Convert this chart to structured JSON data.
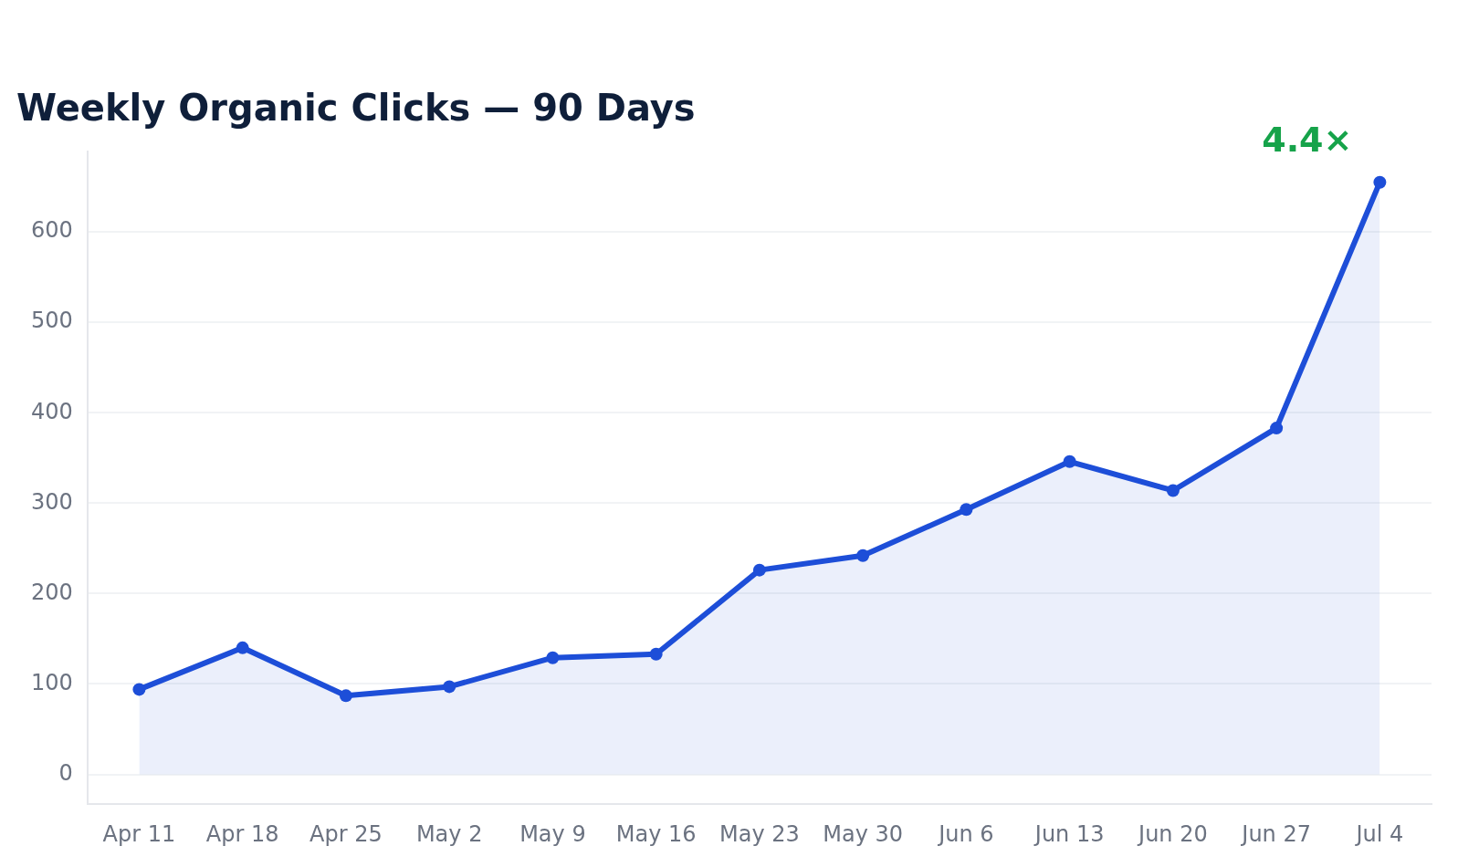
{
  "chart_data": {
    "type": "area",
    "title": "Weekly Organic Clicks — 90 Days",
    "categories": [
      "Apr 11",
      "Apr 18",
      "Apr 25",
      "May 2",
      "May 9",
      "May 16",
      "May 23",
      "May 30",
      "Jun 6",
      "Jun 13",
      "Jun 20",
      "Jun 27",
      "Jul 4"
    ],
    "series": [
      {
        "color": "#1d4ed8",
        "values": [
          94,
          140,
          87,
          97,
          129,
          133,
          226,
          242,
          293,
          346,
          314,
          383,
          655
        ]
      }
    ],
    "ylim": [
      -33,
      689
    ],
    "yticks": [
      0,
      100,
      200,
      300,
      400,
      500,
      600
    ],
    "grid": "y",
    "legend": false,
    "marker": "circle",
    "line_style": "solid",
    "annotations": [
      {
        "text": "4.4×",
        "x": "Jul 4",
        "y": 655
      }
    ]
  }
}
